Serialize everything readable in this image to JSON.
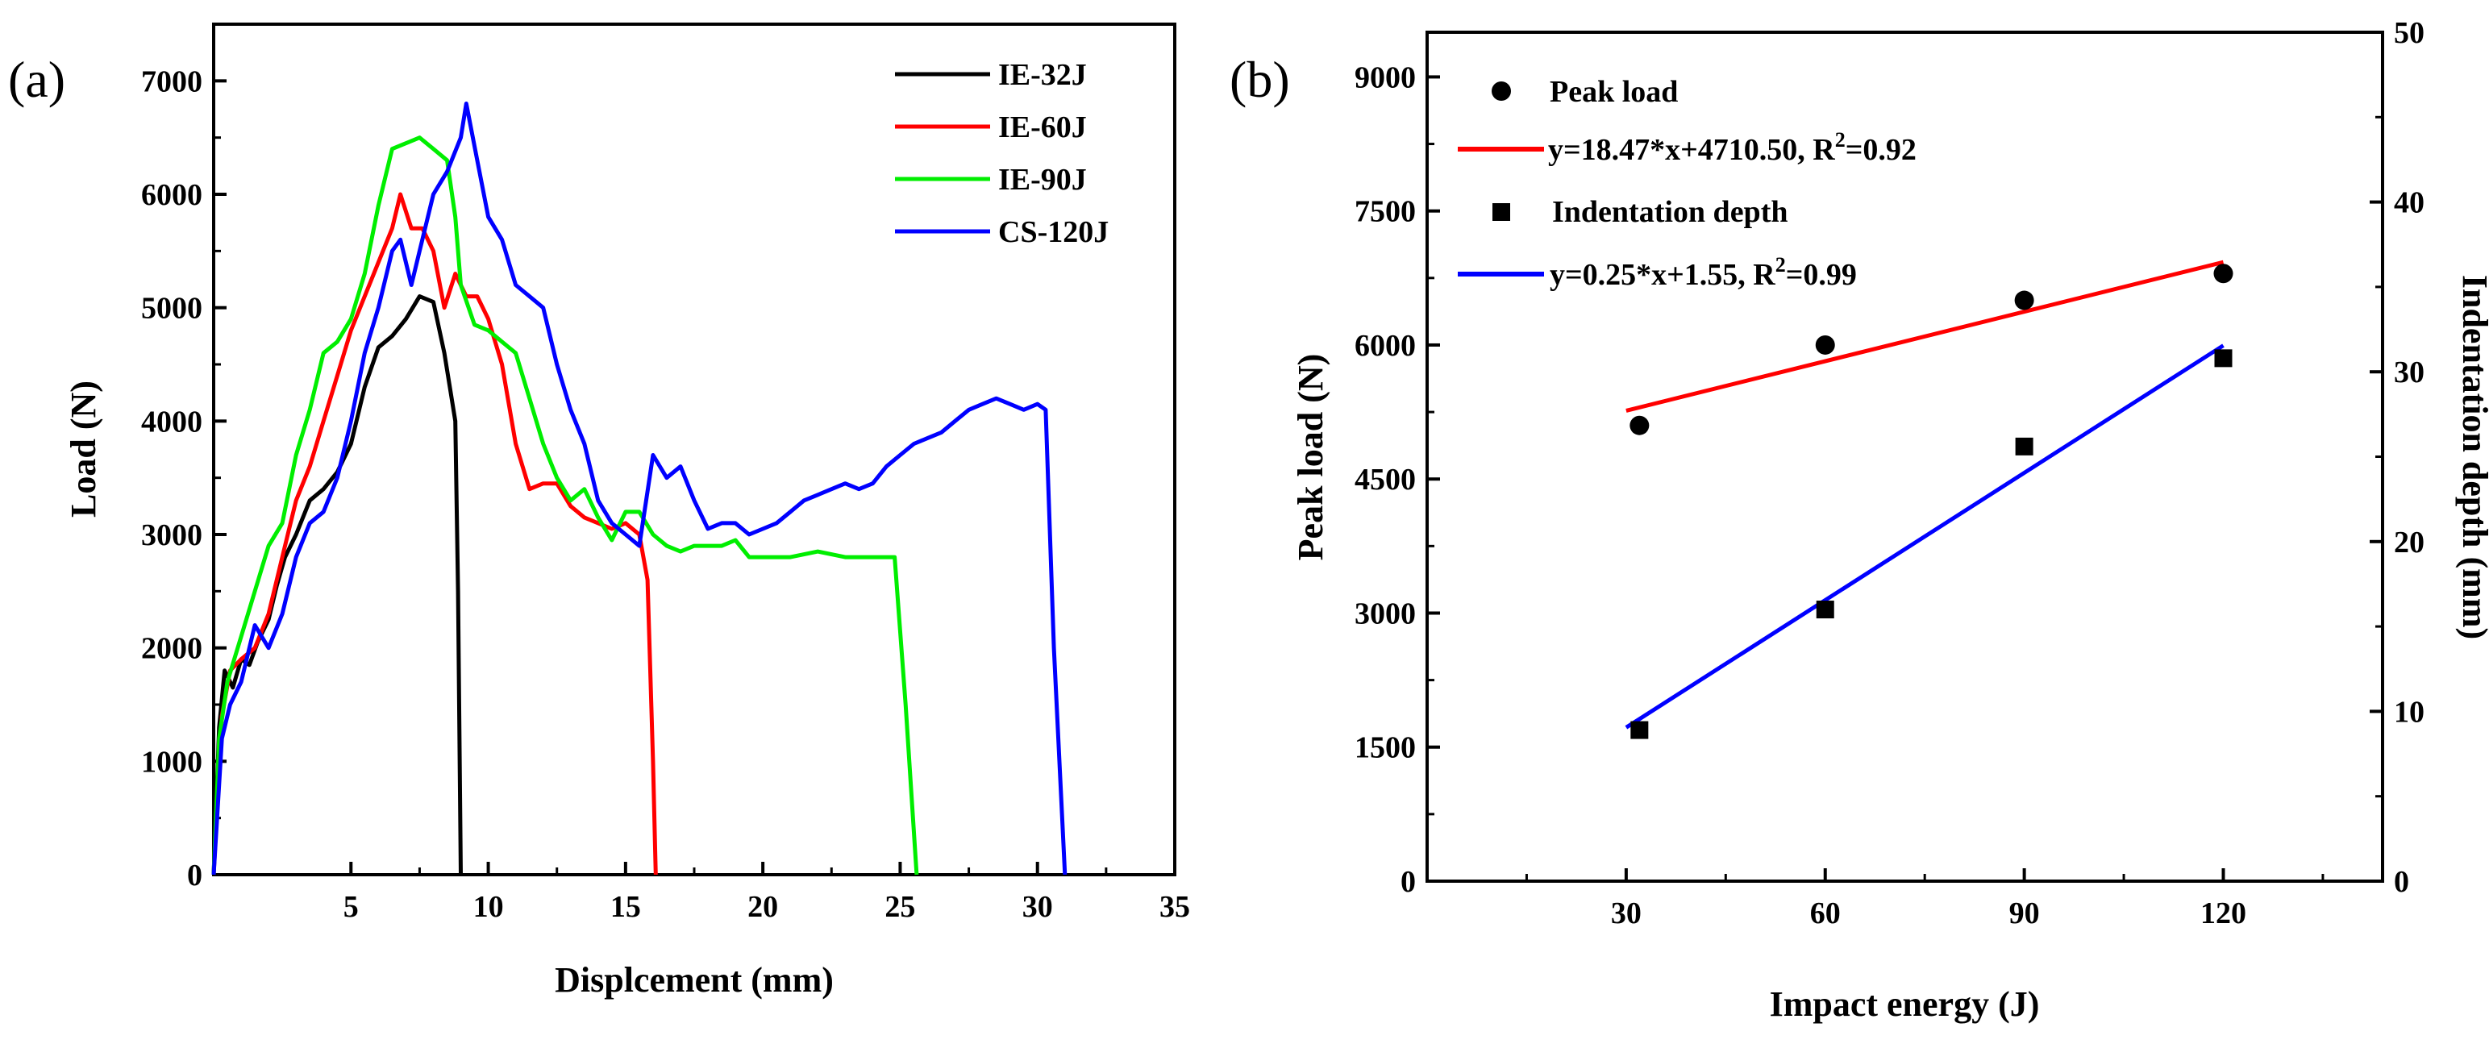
{
  "chart_data": [
    {
      "type": "line",
      "panel_label": "(a)",
      "title": "",
      "xlabel": "Displcement (mm)",
      "ylabel": "Load (N)",
      "xlim": [
        0,
        35
      ],
      "ylim": [
        0,
        7500
      ],
      "xticks": [
        5,
        10,
        15,
        20,
        25,
        30,
        35
      ],
      "yticks": [
        0,
        1000,
        2000,
        3000,
        4000,
        5000,
        6000,
        7000
      ],
      "legend_position": "top-right",
      "series": [
        {
          "name": "IE-32J",
          "color": "#000000",
          "points": [
            [
              0,
              0
            ],
            [
              0.2,
              1300
            ],
            [
              0.4,
              1800
            ],
            [
              0.7,
              1650
            ],
            [
              1,
              1900
            ],
            [
              1.3,
              1850
            ],
            [
              1.6,
              2050
            ],
            [
              2,
              2250
            ],
            [
              2.3,
              2550
            ],
            [
              2.6,
              2800
            ],
            [
              3,
              3000
            ],
            [
              3.5,
              3300
            ],
            [
              4,
              3400
            ],
            [
              4.5,
              3550
            ],
            [
              5,
              3800
            ],
            [
              5.5,
              4300
            ],
            [
              6,
              4650
            ],
            [
              6.5,
              4750
            ],
            [
              7,
              4900
            ],
            [
              7.5,
              5100
            ],
            [
              8,
              5050
            ],
            [
              8.4,
              4600
            ],
            [
              8.8,
              4000
            ],
            [
              8.9,
              2500
            ],
            [
              9,
              0
            ]
          ]
        },
        {
          "name": "IE-60J",
          "color": "#ff0000",
          "points": [
            [
              0,
              0
            ],
            [
              0.3,
              1400
            ],
            [
              0.6,
              1800
            ],
            [
              1,
              1900
            ],
            [
              1.5,
              2000
            ],
            [
              2,
              2300
            ],
            [
              2.5,
              2800
            ],
            [
              3,
              3300
            ],
            [
              3.5,
              3600
            ],
            [
              4,
              4000
            ],
            [
              4.5,
              4400
            ],
            [
              5,
              4800
            ],
            [
              5.5,
              5100
            ],
            [
              6,
              5400
            ],
            [
              6.5,
              5700
            ],
            [
              6.8,
              6000
            ],
            [
              7.2,
              5700
            ],
            [
              7.6,
              5700
            ],
            [
              8,
              5500
            ],
            [
              8.4,
              5000
            ],
            [
              8.8,
              5300
            ],
            [
              9.2,
              5100
            ],
            [
              9.6,
              5100
            ],
            [
              10,
              4900
            ],
            [
              10.5,
              4500
            ],
            [
              11,
              3800
            ],
            [
              11.5,
              3400
            ],
            [
              12,
              3450
            ],
            [
              12.5,
              3450
            ],
            [
              13,
              3250
            ],
            [
              13.5,
              3150
            ],
            [
              14,
              3100
            ],
            [
              14.5,
              3050
            ],
            [
              15,
              3100
            ],
            [
              15.5,
              3000
            ],
            [
              15.8,
              2600
            ],
            [
              16,
              1000
            ],
            [
              16.1,
              0
            ]
          ]
        },
        {
          "name": "IE-90J",
          "color": "#00ee00",
          "points": [
            [
              0,
              0
            ],
            [
              0.2,
              1200
            ],
            [
              0.5,
              1700
            ],
            [
              1,
              2100
            ],
            [
              1.5,
              2500
            ],
            [
              2,
              2900
            ],
            [
              2.5,
              3100
            ],
            [
              3,
              3700
            ],
            [
              3.5,
              4100
            ],
            [
              4,
              4600
            ],
            [
              4.5,
              4700
            ],
            [
              5,
              4900
            ],
            [
              5.5,
              5300
            ],
            [
              6,
              5900
            ],
            [
              6.5,
              6400
            ],
            [
              7,
              6450
            ],
            [
              7.5,
              6500
            ],
            [
              8,
              6400
            ],
            [
              8.5,
              6300
            ],
            [
              8.8,
              5800
            ],
            [
              9,
              5200
            ],
            [
              9.5,
              4850
            ],
            [
              10,
              4800
            ],
            [
              10.5,
              4700
            ],
            [
              11,
              4600
            ],
            [
              11.5,
              4200
            ],
            [
              12,
              3800
            ],
            [
              12.5,
              3500
            ],
            [
              13,
              3300
            ],
            [
              13.5,
              3400
            ],
            [
              14,
              3150
            ],
            [
              14.5,
              2950
            ],
            [
              15,
              3200
            ],
            [
              15.5,
              3200
            ],
            [
              16,
              3000
            ],
            [
              16.5,
              2900
            ],
            [
              17,
              2850
            ],
            [
              17.5,
              2900
            ],
            [
              18,
              2900
            ],
            [
              18.5,
              2900
            ],
            [
              19,
              2950
            ],
            [
              19.5,
              2800
            ],
            [
              20,
              2800
            ],
            [
              21,
              2800
            ],
            [
              22,
              2850
            ],
            [
              23,
              2800
            ],
            [
              24,
              2800
            ],
            [
              24.8,
              2800
            ],
            [
              25.2,
              1500
            ],
            [
              25.6,
              0
            ]
          ]
        },
        {
          "name": "CS-120J",
          "color": "#0000ff",
          "points": [
            [
              0,
              0
            ],
            [
              0.3,
              1200
            ],
            [
              0.6,
              1500
            ],
            [
              1,
              1700
            ],
            [
              1.5,
              2200
            ],
            [
              2,
              2000
            ],
            [
              2.5,
              2300
            ],
            [
              3,
              2800
            ],
            [
              3.5,
              3100
            ],
            [
              4,
              3200
            ],
            [
              4.5,
              3500
            ],
            [
              5,
              4000
            ],
            [
              5.5,
              4600
            ],
            [
              6,
              5000
            ],
            [
              6.5,
              5500
            ],
            [
              6.8,
              5600
            ],
            [
              7.2,
              5200
            ],
            [
              7.5,
              5500
            ],
            [
              8,
              6000
            ],
            [
              8.5,
              6200
            ],
            [
              9,
              6500
            ],
            [
              9.2,
              6800
            ],
            [
              9.6,
              6300
            ],
            [
              10,
              5800
            ],
            [
              10.5,
              5600
            ],
            [
              11,
              5200
            ],
            [
              11.5,
              5100
            ],
            [
              12,
              5000
            ],
            [
              12.5,
              4500
            ],
            [
              13,
              4100
            ],
            [
              13.5,
              3800
            ],
            [
              14,
              3300
            ],
            [
              14.5,
              3100
            ],
            [
              15,
              3000
            ],
            [
              15.5,
              2900
            ],
            [
              16,
              3700
            ],
            [
              16.5,
              3500
            ],
            [
              17,
              3600
            ],
            [
              17.5,
              3300
            ],
            [
              18,
              3050
            ],
            [
              18.5,
              3100
            ],
            [
              19,
              3100
            ],
            [
              19.5,
              3000
            ],
            [
              20,
              3050
            ],
            [
              20.5,
              3100
            ],
            [
              21,
              3200
            ],
            [
              21.5,
              3300
            ],
            [
              22,
              3350
            ],
            [
              22.5,
              3400
            ],
            [
              23,
              3450
            ],
            [
              23.5,
              3400
            ],
            [
              24,
              3450
            ],
            [
              24.5,
              3600
            ],
            [
              25,
              3700
            ],
            [
              25.5,
              3800
            ],
            [
              26,
              3850
            ],
            [
              26.5,
              3900
            ],
            [
              27,
              4000
            ],
            [
              27.5,
              4100
            ],
            [
              28,
              4150
            ],
            [
              28.5,
              4200
            ],
            [
              29,
              4150
            ],
            [
              29.5,
              4100
            ],
            [
              30,
              4150
            ],
            [
              30.3,
              4100
            ],
            [
              30.6,
              2000
            ],
            [
              31,
              0
            ]
          ]
        }
      ]
    },
    {
      "type": "scatter",
      "panel_label": "(b)",
      "title": "",
      "xlabel": "Impact energy (J)",
      "ylabel": "Peak load (N)",
      "y2label": "Indentation depth (mm)",
      "xlim": [
        0,
        144
      ],
      "ylim": [
        0,
        9500
      ],
      "y2lim": [
        0,
        50
      ],
      "xticks": [
        30,
        60,
        90,
        120
      ],
      "yticks": [
        0,
        1500,
        3000,
        4500,
        6000,
        7500,
        9000
      ],
      "y2ticks": [
        0,
        10,
        20,
        30,
        40,
        50
      ],
      "legend_position": "top-left",
      "series": [
        {
          "name": "Peak load",
          "axis": "left",
          "marker": "circle",
          "color": "#000000",
          "x": [
            32,
            60,
            90,
            120
          ],
          "y": [
            5100,
            6000,
            6500,
            6800
          ]
        },
        {
          "name": "Indentation depth",
          "axis": "right",
          "marker": "square",
          "color": "#000000",
          "x": [
            32,
            60,
            90,
            120
          ],
          "y": [
            8.9,
            16.0,
            25.6,
            30.8
          ]
        }
      ],
      "fits": [
        {
          "legend_label": "y=18.47*x+4710.50, R",
          "exp": "2",
          "r2_tail": "=0.92",
          "axis": "left",
          "color": "#ff0000",
          "slope": 18.47,
          "intercept": 4710.5,
          "x_range": [
            30,
            120
          ]
        },
        {
          "legend_label": "y=0.25*x+1.55, R",
          "exp": "2",
          "r2_tail": "=0.99",
          "axis": "right",
          "color": "#0000ff",
          "slope": 0.25,
          "intercept": 1.55,
          "x_range": [
            30,
            120
          ]
        }
      ]
    }
  ]
}
